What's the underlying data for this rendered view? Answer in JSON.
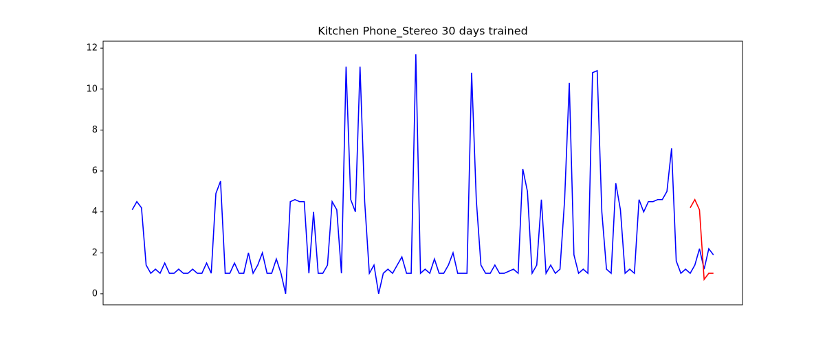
{
  "chart_data": {
    "type": "line",
    "title": "Kitchen Phone_Stereo 30 days trained",
    "ylim": [
      -0.54,
      12.34
    ],
    "yticks": [
      0,
      2,
      4,
      6,
      8,
      10,
      12
    ],
    "series": [
      {
        "color": "#0000ff",
        "values": [
          4.1,
          4.5,
          4.2,
          1.4,
          1,
          1.2,
          1,
          1.5,
          1,
          1,
          1.2,
          1,
          1,
          1.2,
          1,
          1,
          1.5,
          1,
          4.9,
          5.5,
          1,
          1,
          1.5,
          1,
          1,
          2,
          1,
          1.4,
          2,
          1,
          1,
          1.7,
          1,
          0,
          4.5,
          4.6,
          4.5,
          4.5,
          1,
          4,
          1,
          1,
          1.4,
          4.5,
          4.1,
          1,
          11.1,
          4.6,
          4,
          11.1,
          4.5,
          1,
          1.4,
          0,
          1,
          1.2,
          1,
          1.4,
          1.8,
          1,
          1,
          11.7,
          1,
          1.2,
          1,
          1.7,
          1,
          1,
          1.4,
          2,
          1,
          1,
          1,
          10.8,
          4.6,
          1.4,
          1,
          1,
          1.4,
          1,
          1,
          1.1,
          1.2,
          1,
          6.1,
          5,
          1,
          1.4,
          4.6,
          1,
          1.4,
          1,
          1.2,
          4.6,
          10.3,
          1.9,
          1,
          1.2,
          1,
          10.8,
          10.9,
          4,
          1.2,
          1,
          5.4,
          4.1,
          1,
          1.2,
          1,
          4.6,
          4,
          4.5,
          4.5,
          4.6,
          4.6,
          5,
          7.1,
          1.6,
          1,
          1.2,
          1,
          1.4,
          2.2,
          1.2,
          2.2,
          1.9
        ]
      },
      {
        "color": "#ff0000",
        "values": [
          null,
          null,
          null,
          null,
          null,
          null,
          null,
          null,
          null,
          null,
          null,
          null,
          null,
          null,
          null,
          null,
          null,
          null,
          null,
          null,
          null,
          null,
          null,
          null,
          null,
          null,
          null,
          null,
          null,
          null,
          null,
          null,
          null,
          null,
          null,
          null,
          null,
          null,
          null,
          null,
          null,
          null,
          null,
          null,
          null,
          null,
          null,
          null,
          null,
          null,
          null,
          null,
          null,
          null,
          null,
          null,
          null,
          null,
          null,
          null,
          null,
          null,
          null,
          null,
          null,
          null,
          null,
          null,
          null,
          null,
          null,
          null,
          null,
          null,
          null,
          null,
          null,
          null,
          null,
          null,
          null,
          null,
          null,
          null,
          null,
          null,
          null,
          null,
          null,
          null,
          null,
          null,
          null,
          null,
          null,
          null,
          null,
          null,
          null,
          null,
          null,
          null,
          null,
          null,
          null,
          null,
          null,
          null,
          null,
          null,
          null,
          null,
          null,
          null,
          null,
          null,
          null,
          null,
          null,
          null,
          4.2,
          4.6,
          4.1,
          0.7,
          1,
          1
        ]
      }
    ]
  }
}
